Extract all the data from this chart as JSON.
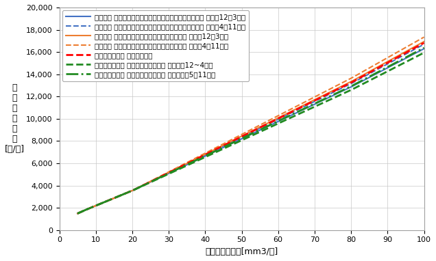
{
  "xlabel": "月間ガス使用量[mm3/月]",
  "ylabel": "推\n定\nガ\nス\n料\n金\n[円/月]",
  "xlim": [
    0,
    100
  ],
  "ylim": [
    0,
    20000
  ],
  "xticks": [
    0,
    10,
    20,
    30,
    40,
    50,
    60,
    70,
    80,
    90,
    100
  ],
  "yticks": [
    0,
    2000,
    4000,
    6000,
    8000,
    10000,
    12000,
    14000,
    16000,
    18000,
    20000
  ],
  "series": [
    {
      "label": "東邦ガス あったかトクトク料金（エコジョーズプラン） 冬季（12～3月）",
      "color": "#4472C4",
      "linestyle": "solid",
      "linewidth": 1.5,
      "base_charge": 750.0,
      "tiers": [
        {
          "limit": 7,
          "rate": 148.5
        },
        {
          "limit": 20,
          "rate": 135.0
        },
        {
          "limit": 80,
          "rate": 155.26
        },
        {
          "limit": 200,
          "rate": 172.0
        }
      ]
    },
    {
      "label": "東邦ガス あったかトクトク料金（エコジョーズプラン） 夏季（4～11月）",
      "color": "#4472C4",
      "linestyle": "dashed",
      "linewidth": 1.5,
      "base_charge": 750.0,
      "tiers": [
        {
          "limit": 7,
          "rate": 148.5
        },
        {
          "limit": 20,
          "rate": 135.0
        },
        {
          "limit": 80,
          "rate": 160.26
        },
        {
          "limit": 200,
          "rate": 177.0
        }
      ]
    },
    {
      "label": "東邦ガス あったかトクトク料金（標準プラン） 冬季（12～3月）",
      "color": "#ED7D31",
      "linestyle": "solid",
      "linewidth": 1.5,
      "base_charge": 750.0,
      "tiers": [
        {
          "limit": 7,
          "rate": 148.5
        },
        {
          "limit": 20,
          "rate": 135.0
        },
        {
          "limit": 80,
          "rate": 163.26
        },
        {
          "limit": 200,
          "rate": 180.0
        }
      ]
    },
    {
      "label": "東邦ガス あったかトクトク料金（標準プラン） 夏季（4～11月）",
      "color": "#ED7D31",
      "linestyle": "dashed",
      "linewidth": 1.5,
      "base_charge": 750.0,
      "tiers": [
        {
          "limit": 7,
          "rate": 148.5
        },
        {
          "limit": 20,
          "rate": 135.0
        },
        {
          "limit": 80,
          "rate": 168.26
        },
        {
          "limit": 200,
          "rate": 185.0
        }
      ]
    },
    {
      "label": "ミツウロコガス まる得プラン",
      "color": "#FF0000",
      "linestyle": "dashed",
      "linewidth": 2.0,
      "base_charge": 750.0,
      "tiers": [
        {
          "limit": 7,
          "rate": 148.5
        },
        {
          "limit": 20,
          "rate": 135.0
        },
        {
          "limit": 80,
          "rate": 161.76
        },
        {
          "limit": 200,
          "rate": 178.5
        }
      ]
    },
    {
      "label": "ミツウロコガス まる得ガス暖プラン 暖房機（12~4月）",
      "color": "#228B22",
      "linestyle": "dashed",
      "linewidth": 2.0,
      "base_charge": 750.0,
      "tiers": [
        {
          "limit": 7,
          "rate": 148.5
        },
        {
          "limit": 20,
          "rate": 135.0
        },
        {
          "limit": 80,
          "rate": 150.76
        },
        {
          "limit": 200,
          "rate": 167.5
        }
      ]
    },
    {
      "label": "ミツウロコガス まる得ガス暖プラン そのほか（5～11月）",
      "color": "#228B22",
      "linestyle": "dashdot",
      "linewidth": 2.0,
      "base_charge": 750.0,
      "tiers": [
        {
          "limit": 7,
          "rate": 148.5
        },
        {
          "limit": 20,
          "rate": 135.0
        },
        {
          "limit": 80,
          "rate": 156.26
        },
        {
          "limit": 200,
          "rate": 173.0
        }
      ]
    }
  ],
  "background_color": "#FFFFFF",
  "grid_color": "#C8C8C8",
  "legend_fontsize": 7.5,
  "axis_label_fontsize": 9,
  "tick_fontsize": 8
}
